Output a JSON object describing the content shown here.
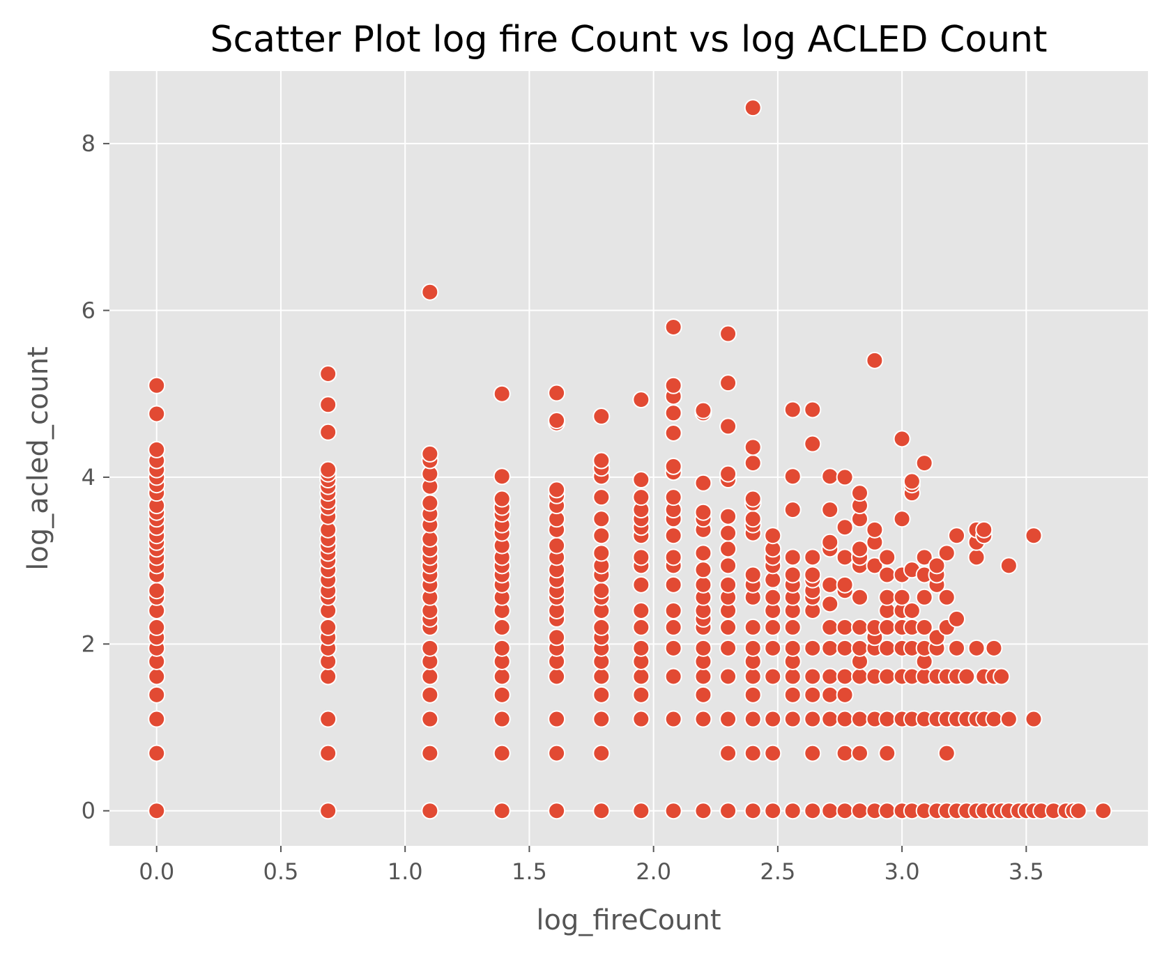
{
  "chart_data": {
    "type": "scatter",
    "title": "Scatter Plot log fire Count vs log ACLED Count",
    "xlabel": "log_fireCount",
    "ylabel": "log_acled_count",
    "xlim": [
      -0.19,
      3.99
    ],
    "ylim": [
      -0.42,
      8.87
    ],
    "x_ticks": [
      0.0,
      0.5,
      1.0,
      1.5,
      2.0,
      2.5,
      3.0,
      3.5
    ],
    "x_tick_labels": [
      "0.0",
      "0.5",
      "1.0",
      "1.5",
      "2.0",
      "2.5",
      "3.0",
      "3.5"
    ],
    "y_ticks": [
      0,
      2,
      4,
      6,
      8
    ],
    "y_tick_labels": [
      "0",
      "2",
      "4",
      "6",
      "8"
    ],
    "grid": true,
    "legend": "none",
    "style": {
      "panel_background": "#e5e5e5",
      "grid_color": "#ffffff",
      "marker_color": "#e24a33",
      "marker_edge_color": "#ffffff"
    },
    "points": [
      [
        0.0,
        0.0
      ],
      [
        0.0,
        0.69
      ],
      [
        0.0,
        1.1
      ],
      [
        0.0,
        1.39
      ],
      [
        0.0,
        1.61
      ],
      [
        0.0,
        1.79
      ],
      [
        0.0,
        1.95
      ],
      [
        0.0,
        2.08
      ],
      [
        0.0,
        2.2
      ],
      [
        0.0,
        2.4
      ],
      [
        0.0,
        2.56
      ],
      [
        0.0,
        2.64
      ],
      [
        0.0,
        2.83
      ],
      [
        0.0,
        2.94
      ],
      [
        0.0,
        3.04
      ],
      [
        0.0,
        3.14
      ],
      [
        0.0,
        3.22
      ],
      [
        0.0,
        3.3
      ],
      [
        0.0,
        3.4
      ],
      [
        0.0,
        3.5
      ],
      [
        0.0,
        3.58
      ],
      [
        0.0,
        3.66
      ],
      [
        0.0,
        3.81
      ],
      [
        0.0,
        3.91
      ],
      [
        0.0,
        4.0
      ],
      [
        0.0,
        4.09
      ],
      [
        0.0,
        4.2
      ],
      [
        0.0,
        4.33
      ],
      [
        0.0,
        4.76
      ],
      [
        0.0,
        5.1
      ],
      [
        0.69,
        0.0
      ],
      [
        0.69,
        0.69
      ],
      [
        0.69,
        1.1
      ],
      [
        0.69,
        1.61
      ],
      [
        0.69,
        1.79
      ],
      [
        0.69,
        1.95
      ],
      [
        0.69,
        2.08
      ],
      [
        0.69,
        2.2
      ],
      [
        0.69,
        2.4
      ],
      [
        0.69,
        2.56
      ],
      [
        0.69,
        2.64
      ],
      [
        0.69,
        2.77
      ],
      [
        0.69,
        2.89
      ],
      [
        0.69,
        3.0
      ],
      [
        0.69,
        3.09
      ],
      [
        0.69,
        3.18
      ],
      [
        0.69,
        3.26
      ],
      [
        0.69,
        3.37
      ],
      [
        0.69,
        3.53
      ],
      [
        0.69,
        3.64
      ],
      [
        0.69,
        3.71
      ],
      [
        0.69,
        3.81
      ],
      [
        0.69,
        3.89
      ],
      [
        0.69,
        3.97
      ],
      [
        0.69,
        4.04
      ],
      [
        0.69,
        4.09
      ],
      [
        0.69,
        4.54
      ],
      [
        0.69,
        4.87
      ],
      [
        0.69,
        5.24
      ],
      [
        1.1,
        0.0
      ],
      [
        1.1,
        0.69
      ],
      [
        1.1,
        1.1
      ],
      [
        1.1,
        1.39
      ],
      [
        1.1,
        1.61
      ],
      [
        1.1,
        1.79
      ],
      [
        1.1,
        1.95
      ],
      [
        1.1,
        2.2
      ],
      [
        1.1,
        2.3
      ],
      [
        1.1,
        2.4
      ],
      [
        1.1,
        2.56
      ],
      [
        1.1,
        2.71
      ],
      [
        1.1,
        2.83
      ],
      [
        1.1,
        2.94
      ],
      [
        1.1,
        3.04
      ],
      [
        1.1,
        3.14
      ],
      [
        1.1,
        3.26
      ],
      [
        1.1,
        3.43
      ],
      [
        1.1,
        3.56
      ],
      [
        1.1,
        3.69
      ],
      [
        1.1,
        3.89
      ],
      [
        1.1,
        4.04
      ],
      [
        1.1,
        4.2
      ],
      [
        1.1,
        4.28
      ],
      [
        1.1,
        6.22
      ],
      [
        1.39,
        0.0
      ],
      [
        1.39,
        0.69
      ],
      [
        1.39,
        1.1
      ],
      [
        1.39,
        1.39
      ],
      [
        1.39,
        1.61
      ],
      [
        1.39,
        1.79
      ],
      [
        1.39,
        1.95
      ],
      [
        1.39,
        2.2
      ],
      [
        1.39,
        2.4
      ],
      [
        1.39,
        2.56
      ],
      [
        1.39,
        2.71
      ],
      [
        1.39,
        2.83
      ],
      [
        1.39,
        2.94
      ],
      [
        1.39,
        3.04
      ],
      [
        1.39,
        3.18
      ],
      [
        1.39,
        3.33
      ],
      [
        1.39,
        3.43
      ],
      [
        1.39,
        3.56
      ],
      [
        1.39,
        3.64
      ],
      [
        1.39,
        3.74
      ],
      [
        1.39,
        4.01
      ],
      [
        1.39,
        5.0
      ],
      [
        1.61,
        0.0
      ],
      [
        1.61,
        0.69
      ],
      [
        1.61,
        1.1
      ],
      [
        1.61,
        1.61
      ],
      [
        1.61,
        1.79
      ],
      [
        1.61,
        1.95
      ],
      [
        1.61,
        2.08
      ],
      [
        1.61,
        2.3
      ],
      [
        1.61,
        2.4
      ],
      [
        1.61,
        2.56
      ],
      [
        1.61,
        2.64
      ],
      [
        1.61,
        2.77
      ],
      [
        1.61,
        2.89
      ],
      [
        1.61,
        3.04
      ],
      [
        1.61,
        3.18
      ],
      [
        1.61,
        3.37
      ],
      [
        1.61,
        3.5
      ],
      [
        1.61,
        3.66
      ],
      [
        1.61,
        3.78
      ],
      [
        1.61,
        3.85
      ],
      [
        1.61,
        4.65
      ],
      [
        1.61,
        4.68
      ],
      [
        1.61,
        5.01
      ],
      [
        1.79,
        0.0
      ],
      [
        1.79,
        0.69
      ],
      [
        1.79,
        1.1
      ],
      [
        1.79,
        1.39
      ],
      [
        1.79,
        1.61
      ],
      [
        1.79,
        1.79
      ],
      [
        1.79,
        1.95
      ],
      [
        1.79,
        2.08
      ],
      [
        1.79,
        2.2
      ],
      [
        1.79,
        2.4
      ],
      [
        1.79,
        2.56
      ],
      [
        1.79,
        2.64
      ],
      [
        1.79,
        2.83
      ],
      [
        1.79,
        2.94
      ],
      [
        1.79,
        3.09
      ],
      [
        1.79,
        3.3
      ],
      [
        1.79,
        3.5
      ],
      [
        1.79,
        3.76
      ],
      [
        1.79,
        4.01
      ],
      [
        1.79,
        4.11
      ],
      [
        1.79,
        4.2
      ],
      [
        1.79,
        4.73
      ],
      [
        1.95,
        0.0
      ],
      [
        1.95,
        1.1
      ],
      [
        1.95,
        1.39
      ],
      [
        1.95,
        1.61
      ],
      [
        1.95,
        1.79
      ],
      [
        1.95,
        1.95
      ],
      [
        1.95,
        2.2
      ],
      [
        1.95,
        2.4
      ],
      [
        1.95,
        2.71
      ],
      [
        1.95,
        2.94
      ],
      [
        1.95,
        3.04
      ],
      [
        1.95,
        3.3
      ],
      [
        1.95,
        3.4
      ],
      [
        1.95,
        3.5
      ],
      [
        1.95,
        3.61
      ],
      [
        1.95,
        3.76
      ],
      [
        1.95,
        3.97
      ],
      [
        1.95,
        4.93
      ],
      [
        2.08,
        0.0
      ],
      [
        2.08,
        1.1
      ],
      [
        2.08,
        1.61
      ],
      [
        2.08,
        1.95
      ],
      [
        2.08,
        2.2
      ],
      [
        2.08,
        2.4
      ],
      [
        2.08,
        2.71
      ],
      [
        2.08,
        2.94
      ],
      [
        2.08,
        3.04
      ],
      [
        2.08,
        3.3
      ],
      [
        2.08,
        3.5
      ],
      [
        2.08,
        3.61
      ],
      [
        2.08,
        3.76
      ],
      [
        2.08,
        4.06
      ],
      [
        2.08,
        4.13
      ],
      [
        2.08,
        4.53
      ],
      [
        2.08,
        4.77
      ],
      [
        2.08,
        4.97
      ],
      [
        2.08,
        5.1
      ],
      [
        2.08,
        5.8
      ],
      [
        2.2,
        0.0
      ],
      [
        2.2,
        1.1
      ],
      [
        2.2,
        1.39
      ],
      [
        2.2,
        1.61
      ],
      [
        2.2,
        1.79
      ],
      [
        2.2,
        1.95
      ],
      [
        2.2,
        2.2
      ],
      [
        2.2,
        2.3
      ],
      [
        2.2,
        2.4
      ],
      [
        2.2,
        2.56
      ],
      [
        2.2,
        2.71
      ],
      [
        2.2,
        2.89
      ],
      [
        2.2,
        3.09
      ],
      [
        2.2,
        3.37
      ],
      [
        2.2,
        3.5
      ],
      [
        2.2,
        3.58
      ],
      [
        2.2,
        3.93
      ],
      [
        2.2,
        4.77
      ],
      [
        2.2,
        4.8
      ],
      [
        2.3,
        0.0
      ],
      [
        2.3,
        0.69
      ],
      [
        2.3,
        1.1
      ],
      [
        2.3,
        1.61
      ],
      [
        2.3,
        1.95
      ],
      [
        2.3,
        2.2
      ],
      [
        2.3,
        2.4
      ],
      [
        2.3,
        2.56
      ],
      [
        2.3,
        2.71
      ],
      [
        2.3,
        2.94
      ],
      [
        2.3,
        3.14
      ],
      [
        2.3,
        3.33
      ],
      [
        2.3,
        3.53
      ],
      [
        2.3,
        3.97
      ],
      [
        2.3,
        4.04
      ],
      [
        2.3,
        4.61
      ],
      [
        2.3,
        5.13
      ],
      [
        2.3,
        5.72
      ],
      [
        2.4,
        0.0
      ],
      [
        2.4,
        0.69
      ],
      [
        2.4,
        1.1
      ],
      [
        2.4,
        1.39
      ],
      [
        2.4,
        1.61
      ],
      [
        2.4,
        1.79
      ],
      [
        2.4,
        1.95
      ],
      [
        2.4,
        2.2
      ],
      [
        2.4,
        2.56
      ],
      [
        2.4,
        2.71
      ],
      [
        2.4,
        2.83
      ],
      [
        2.4,
        3.33
      ],
      [
        2.4,
        3.43
      ],
      [
        2.4,
        3.5
      ],
      [
        2.4,
        3.69
      ],
      [
        2.4,
        3.74
      ],
      [
        2.4,
        4.17
      ],
      [
        2.4,
        4.36
      ],
      [
        2.4,
        8.43
      ],
      [
        2.48,
        0.0
      ],
      [
        2.48,
        0.69
      ],
      [
        2.48,
        1.1
      ],
      [
        2.48,
        1.61
      ],
      [
        2.48,
        1.95
      ],
      [
        2.48,
        2.2
      ],
      [
        2.48,
        2.4
      ],
      [
        2.48,
        2.56
      ],
      [
        2.48,
        2.77
      ],
      [
        2.48,
        2.94
      ],
      [
        2.48,
        3.04
      ],
      [
        2.48,
        3.14
      ],
      [
        2.48,
        3.3
      ],
      [
        2.56,
        0.0
      ],
      [
        2.56,
        1.1
      ],
      [
        2.56,
        1.39
      ],
      [
        2.56,
        1.61
      ],
      [
        2.56,
        1.79
      ],
      [
        2.56,
        1.95
      ],
      [
        2.56,
        2.2
      ],
      [
        2.56,
        2.4
      ],
      [
        2.56,
        2.56
      ],
      [
        2.56,
        2.71
      ],
      [
        2.56,
        2.83
      ],
      [
        2.56,
        3.04
      ],
      [
        2.56,
        3.61
      ],
      [
        2.56,
        4.01
      ],
      [
        2.56,
        4.81
      ],
      [
        2.64,
        0.0
      ],
      [
        2.64,
        0.69
      ],
      [
        2.64,
        1.1
      ],
      [
        2.64,
        1.39
      ],
      [
        2.64,
        1.61
      ],
      [
        2.64,
        1.95
      ],
      [
        2.64,
        2.4
      ],
      [
        2.64,
        2.56
      ],
      [
        2.64,
        2.64
      ],
      [
        2.64,
        2.77
      ],
      [
        2.64,
        2.83
      ],
      [
        2.64,
        3.04
      ],
      [
        2.64,
        4.4
      ],
      [
        2.64,
        4.81
      ],
      [
        2.71,
        0.0
      ],
      [
        2.71,
        1.1
      ],
      [
        2.71,
        1.39
      ],
      [
        2.71,
        1.61
      ],
      [
        2.71,
        1.95
      ],
      [
        2.71,
        2.2
      ],
      [
        2.71,
        2.48
      ],
      [
        2.71,
        2.71
      ],
      [
        2.71,
        3.14
      ],
      [
        2.71,
        3.22
      ],
      [
        2.71,
        3.61
      ],
      [
        2.71,
        4.01
      ],
      [
        2.77,
        0.0
      ],
      [
        2.77,
        0.69
      ],
      [
        2.77,
        1.1
      ],
      [
        2.77,
        1.39
      ],
      [
        2.77,
        1.61
      ],
      [
        2.77,
        1.95
      ],
      [
        2.77,
        2.2
      ],
      [
        2.77,
        2.64
      ],
      [
        2.77,
        2.71
      ],
      [
        2.77,
        3.04
      ],
      [
        2.77,
        3.4
      ],
      [
        2.77,
        4.0
      ],
      [
        2.83,
        0.0
      ],
      [
        2.83,
        0.69
      ],
      [
        2.83,
        1.1
      ],
      [
        2.83,
        1.61
      ],
      [
        2.83,
        1.79
      ],
      [
        2.83,
        1.95
      ],
      [
        2.83,
        2.2
      ],
      [
        2.83,
        2.56
      ],
      [
        2.83,
        2.94
      ],
      [
        2.83,
        3.04
      ],
      [
        2.83,
        3.14
      ],
      [
        2.83,
        3.5
      ],
      [
        2.83,
        3.66
      ],
      [
        2.83,
        3.81
      ],
      [
        2.89,
        0.0
      ],
      [
        2.89,
        1.1
      ],
      [
        2.89,
        1.61
      ],
      [
        2.89,
        1.95
      ],
      [
        2.89,
        2.08
      ],
      [
        2.89,
        2.2
      ],
      [
        2.89,
        2.94
      ],
      [
        2.89,
        3.22
      ],
      [
        2.89,
        3.37
      ],
      [
        2.89,
        5.4
      ],
      [
        2.94,
        0.0
      ],
      [
        2.94,
        0.69
      ],
      [
        2.94,
        1.1
      ],
      [
        2.94,
        1.61
      ],
      [
        2.94,
        1.95
      ],
      [
        2.94,
        2.2
      ],
      [
        2.94,
        2.4
      ],
      [
        2.94,
        2.56
      ],
      [
        2.94,
        2.83
      ],
      [
        2.94,
        3.04
      ],
      [
        3.0,
        0.0
      ],
      [
        3.0,
        1.1
      ],
      [
        3.0,
        1.61
      ],
      [
        3.0,
        1.95
      ],
      [
        3.0,
        2.2
      ],
      [
        3.0,
        2.4
      ],
      [
        3.0,
        2.56
      ],
      [
        3.0,
        2.83
      ],
      [
        3.0,
        3.5
      ],
      [
        3.0,
        4.46
      ],
      [
        3.04,
        0.0
      ],
      [
        3.04,
        1.1
      ],
      [
        3.04,
        1.61
      ],
      [
        3.04,
        1.95
      ],
      [
        3.04,
        2.2
      ],
      [
        3.04,
        2.4
      ],
      [
        3.04,
        2.89
      ],
      [
        3.04,
        3.81
      ],
      [
        3.04,
        3.91
      ],
      [
        3.04,
        3.95
      ],
      [
        3.09,
        0.0
      ],
      [
        3.09,
        1.1
      ],
      [
        3.09,
        1.61
      ],
      [
        3.09,
        1.79
      ],
      [
        3.09,
        1.95
      ],
      [
        3.09,
        2.2
      ],
      [
        3.09,
        2.56
      ],
      [
        3.09,
        2.83
      ],
      [
        3.09,
        3.04
      ],
      [
        3.09,
        4.17
      ],
      [
        3.14,
        0.0
      ],
      [
        3.14,
        1.1
      ],
      [
        3.14,
        1.61
      ],
      [
        3.14,
        1.95
      ],
      [
        3.14,
        2.08
      ],
      [
        3.14,
        2.71
      ],
      [
        3.14,
        2.83
      ],
      [
        3.14,
        2.94
      ],
      [
        3.18,
        0.0
      ],
      [
        3.18,
        0.69
      ],
      [
        3.18,
        1.1
      ],
      [
        3.18,
        1.61
      ],
      [
        3.18,
        2.2
      ],
      [
        3.18,
        2.56
      ],
      [
        3.18,
        3.09
      ],
      [
        3.22,
        0.0
      ],
      [
        3.22,
        1.1
      ],
      [
        3.22,
        1.61
      ],
      [
        3.22,
        1.95
      ],
      [
        3.22,
        2.3
      ],
      [
        3.22,
        3.3
      ],
      [
        3.26,
        0.0
      ],
      [
        3.26,
        1.1
      ],
      [
        3.26,
        1.61
      ],
      [
        3.3,
        0.0
      ],
      [
        3.3,
        1.1
      ],
      [
        3.3,
        1.95
      ],
      [
        3.3,
        3.04
      ],
      [
        3.3,
        3.22
      ],
      [
        3.3,
        3.37
      ],
      [
        3.33,
        0.0
      ],
      [
        3.33,
        1.1
      ],
      [
        3.33,
        1.61
      ],
      [
        3.33,
        3.3
      ],
      [
        3.33,
        3.37
      ],
      [
        3.37,
        0.0
      ],
      [
        3.37,
        1.1
      ],
      [
        3.37,
        1.61
      ],
      [
        3.37,
        1.95
      ],
      [
        3.4,
        0.0
      ],
      [
        3.4,
        1.61
      ],
      [
        3.43,
        0.0
      ],
      [
        3.43,
        1.1
      ],
      [
        3.43,
        2.94
      ],
      [
        3.47,
        0.0
      ],
      [
        3.5,
        0.0
      ],
      [
        3.53,
        0.0
      ],
      [
        3.53,
        1.1
      ],
      [
        3.53,
        3.3
      ],
      [
        3.56,
        0.0
      ],
      [
        3.61,
        0.0
      ],
      [
        3.66,
        0.0
      ],
      [
        3.69,
        0.0
      ],
      [
        3.71,
        0.0
      ],
      [
        3.81,
        0.0
      ]
    ]
  }
}
